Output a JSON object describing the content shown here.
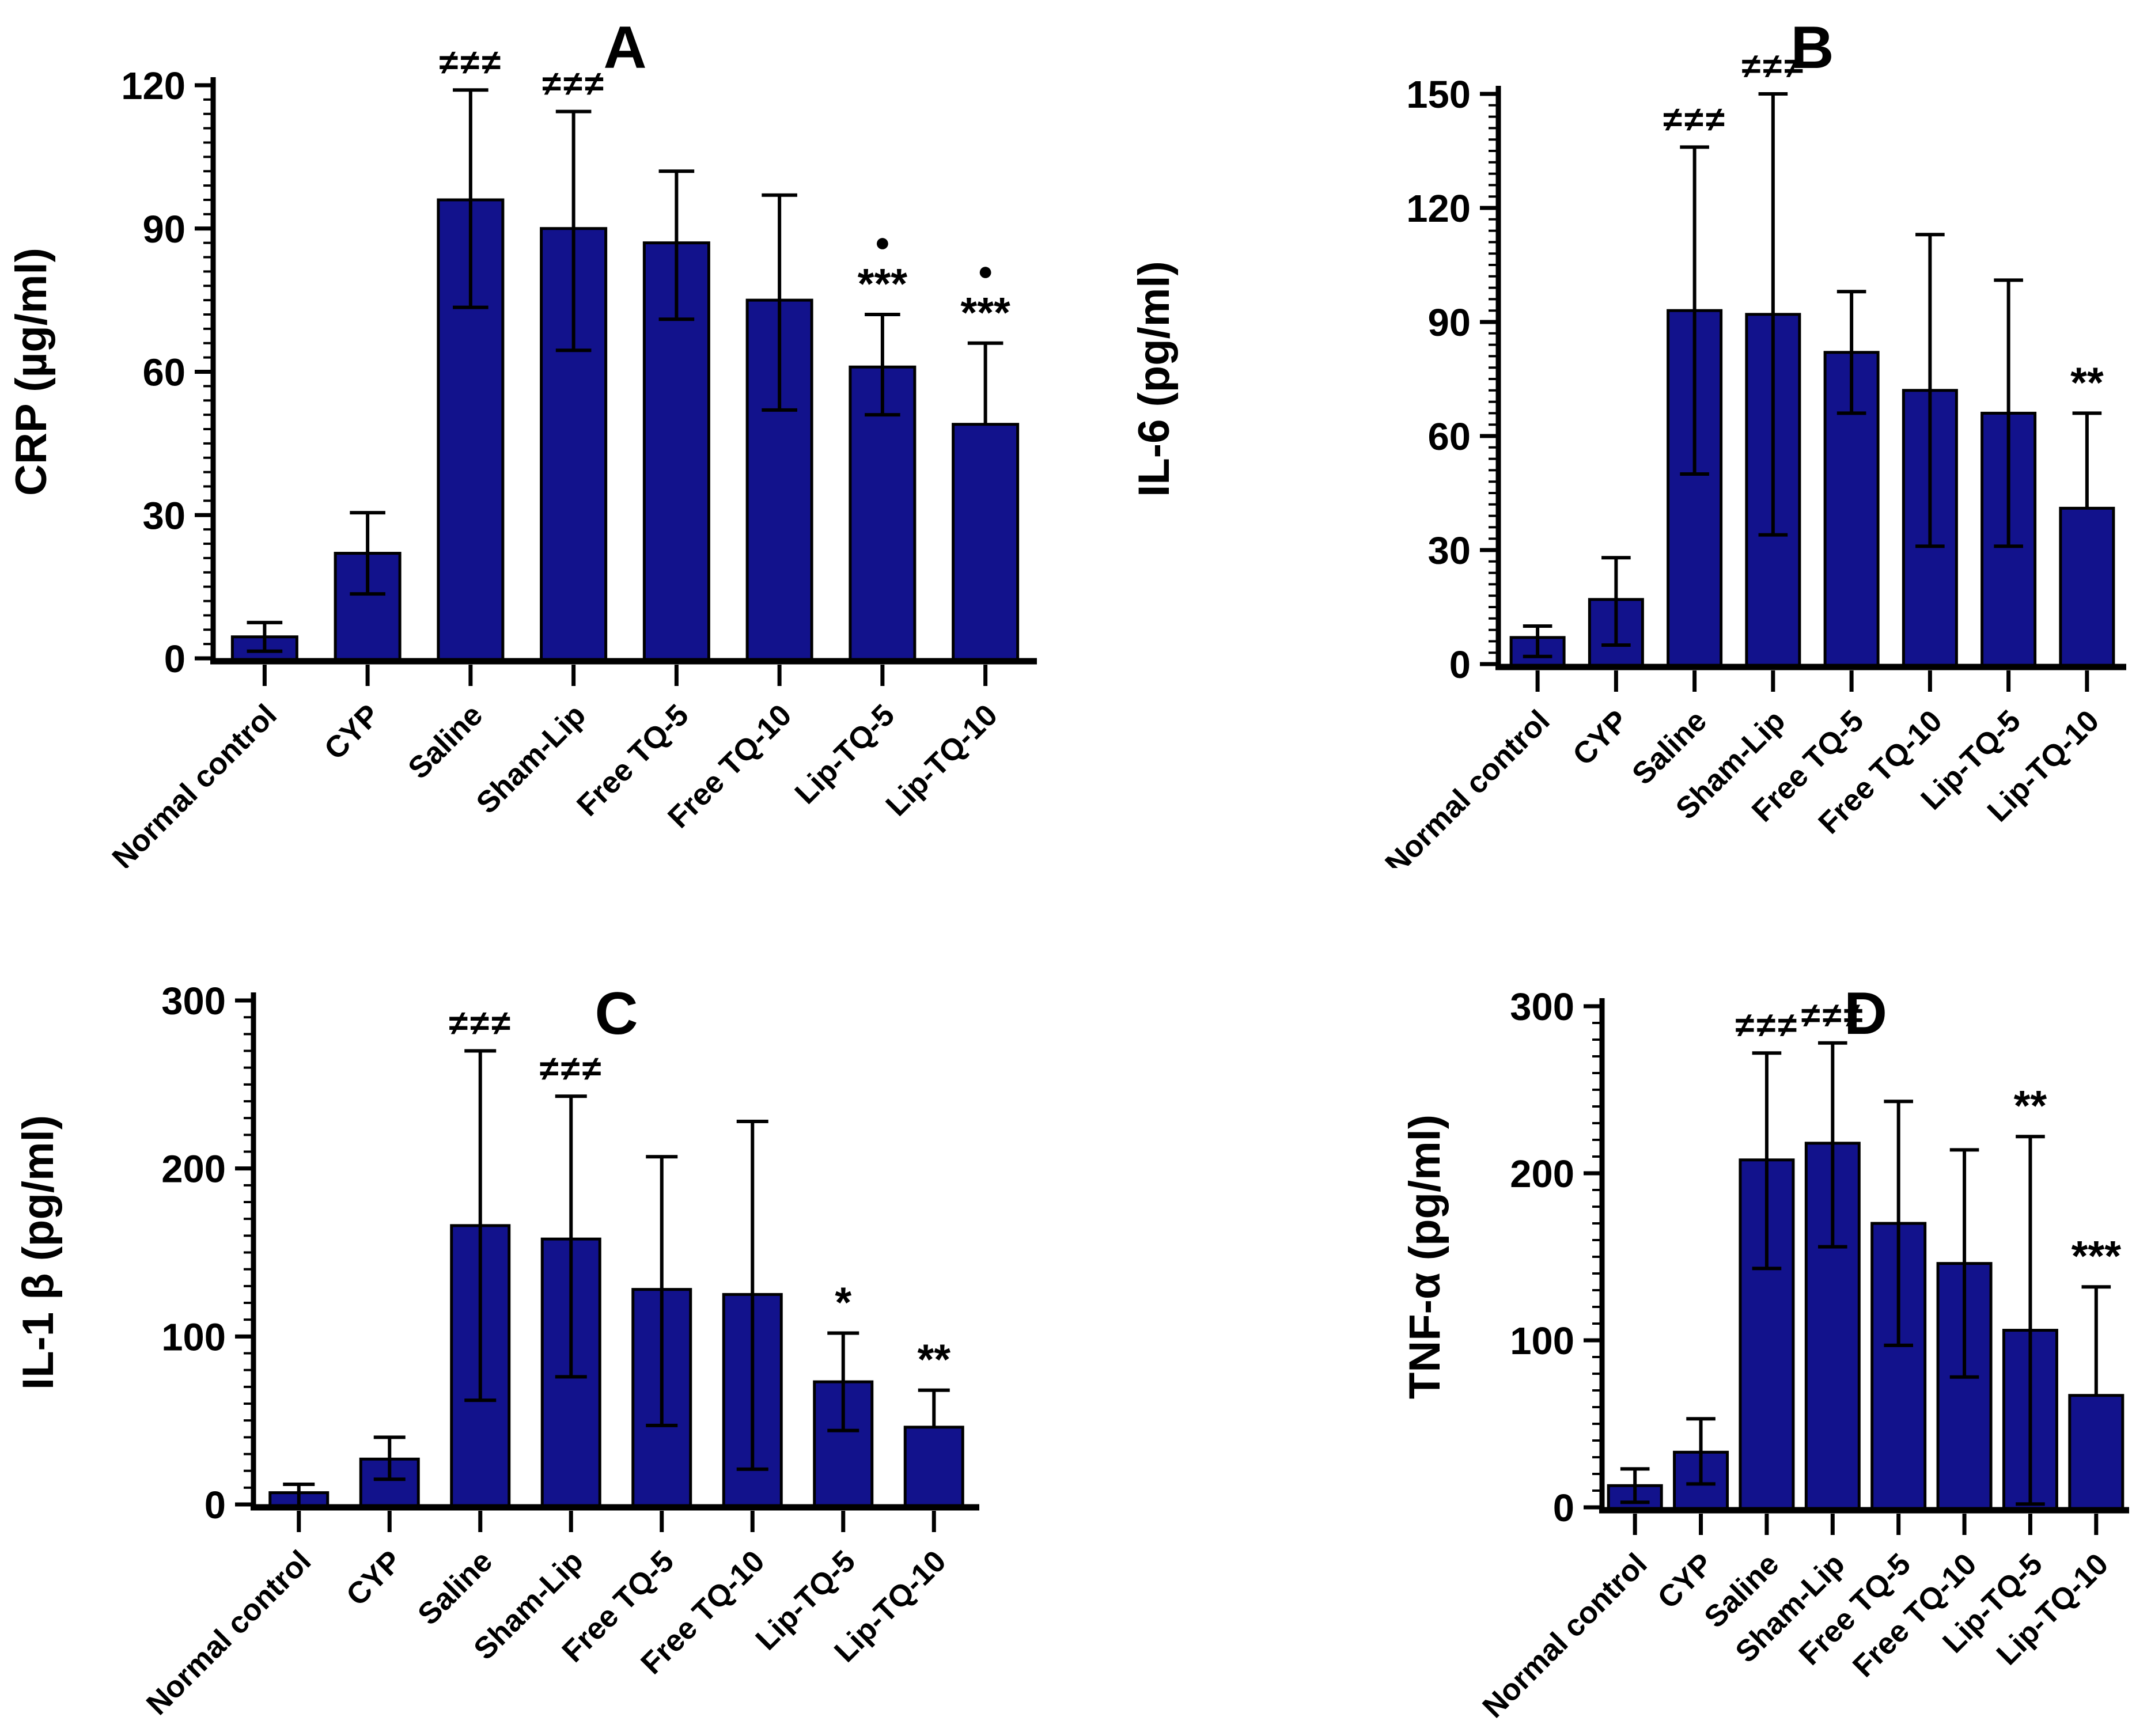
{
  "figure": {
    "background": "#ffffff",
    "colors": {
      "bar_fill": "#12128C",
      "bar_stroke": "#000000",
      "axis": "#000000",
      "error_bar": "#000000",
      "text": "#000000"
    }
  },
  "chart_data": [
    {
      "id": "A",
      "type": "bar",
      "title": "A",
      "ylabel": "CRP (µg/ml)",
      "xlabel": "",
      "ylim": [
        0,
        120
      ],
      "yticks": [
        0,
        30,
        60,
        90,
        120
      ],
      "minor_tick_step": 3,
      "grid": false,
      "legend": "none",
      "categories": [
        "Normal control",
        "CYP",
        "Saline",
        "Sham-Lip",
        "Free TQ-5",
        "Free TQ-10",
        "Lip-TQ-5",
        "Lip-TQ-10"
      ],
      "values": [
        4.5,
        22,
        96,
        90,
        87,
        75,
        61,
        49
      ],
      "err_up": [
        3,
        8.5,
        23,
        24.5,
        15,
        22,
        11,
        17
      ],
      "err_down": [
        3,
        8.5,
        22.5,
        25.5,
        16,
        23,
        10,
        0
      ],
      "annotations": [
        [],
        [],
        [
          "≠≠≠"
        ],
        [
          "≠≠≠"
        ],
        [],
        [],
        [
          "●",
          "***"
        ],
        [
          "●",
          "***"
        ]
      ]
    },
    {
      "id": "B",
      "type": "bar",
      "title": "B",
      "ylabel": "IL-6 (pg/ml)",
      "xlabel": "",
      "ylim": [
        0,
        150
      ],
      "yticks": [
        0,
        30,
        60,
        90,
        120,
        150
      ],
      "minor_tick_step": 3,
      "grid": false,
      "legend": "none",
      "categories": [
        "Normal control",
        "CYP",
        "Saline",
        "Sham-Lip",
        "Free TQ-5",
        "Free TQ-10",
        "Lip-TQ-5",
        "Lip-TQ-10"
      ],
      "values": [
        7,
        17,
        93,
        92,
        82,
        72,
        66,
        41
      ],
      "err_up": [
        3,
        11,
        43,
        58,
        16,
        41,
        35,
        25
      ],
      "err_down": [
        5,
        12,
        43,
        58,
        16,
        41,
        35,
        0
      ],
      "annotations": [
        [],
        [],
        [
          "≠≠≠"
        ],
        [
          "≠≠≠"
        ],
        [],
        [],
        [],
        [
          "**"
        ]
      ]
    },
    {
      "id": "C",
      "type": "bar",
      "title": "C",
      "ylabel": "IL-1 β (pg/ml)",
      "xlabel": "",
      "ylim": [
        0,
        300
      ],
      "yticks": [
        0,
        100,
        200,
        300
      ],
      "minor_tick_step": 10,
      "grid": false,
      "legend": "none",
      "categories": [
        "Normal control",
        "CYP",
        "Saline",
        "Sham-Lip",
        "Free TQ-5",
        "Free TQ-10",
        "Lip-TQ-5",
        "Lip-TQ-10"
      ],
      "values": [
        7,
        27,
        166,
        158,
        128,
        125,
        73,
        46
      ],
      "err_up": [
        5,
        13,
        104,
        85,
        79,
        103,
        29,
        22
      ],
      "err_down": [
        9,
        12,
        104,
        82,
        81,
        104,
        29,
        0
      ],
      "annotations": [
        [],
        [],
        [
          "≠≠≠"
        ],
        [
          "≠≠≠"
        ],
        [],
        [],
        [
          "*"
        ],
        [
          "**"
        ]
      ]
    },
    {
      "id": "D",
      "type": "bar",
      "title": "D",
      "ylabel": "TNF-α (pg/ml)",
      "xlabel": "",
      "ylim": [
        0,
        300
      ],
      "yticks": [
        0,
        100,
        200,
        300
      ],
      "minor_tick_step": 10,
      "grid": false,
      "legend": "none",
      "categories": [
        "Normal control",
        "CYP",
        "Saline",
        "Sham-Lip",
        "Free TQ-5",
        "Free TQ-10",
        "Lip-TQ-5",
        "Lip-TQ-10"
      ],
      "values": [
        13,
        33,
        208,
        218,
        170,
        146,
        106,
        67
      ],
      "err_up": [
        10,
        20,
        64,
        60,
        73,
        68,
        116,
        65
      ],
      "err_down": [
        10,
        19,
        65,
        62,
        73,
        68,
        104,
        0
      ],
      "annotations": [
        [],
        [],
        [
          "≠≠≠"
        ],
        [
          "≠≠≠"
        ],
        [],
        [],
        [
          "**"
        ],
        [
          "***"
        ]
      ]
    }
  ]
}
